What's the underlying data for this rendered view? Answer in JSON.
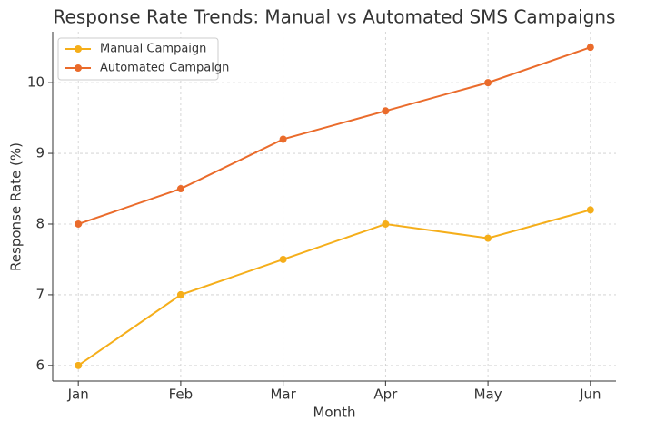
{
  "chart_data": {
    "type": "line",
    "title": "Response Rate Trends: Manual vs Automated SMS Campaigns",
    "x_label": "Month",
    "y_label": "Response Rate (%)",
    "categories": [
      "Jan",
      "Feb",
      "Mar",
      "Apr",
      "May",
      "Jun"
    ],
    "series": [
      {
        "name": "Manual Campaign",
        "color": "#f5ae1a",
        "values": [
          6,
          7,
          7.5,
          8,
          7.8,
          8.2
        ]
      },
      {
        "name": "Automated Campaign",
        "color": "#ea6b2b",
        "values": [
          8,
          8.5,
          9.2,
          9.6,
          10,
          10.5
        ]
      }
    ],
    "ylim": [
      5.78,
      10.72
    ],
    "yticks": [
      6,
      7,
      8,
      9,
      10
    ],
    "grid": true,
    "legend": "upper-left"
  }
}
